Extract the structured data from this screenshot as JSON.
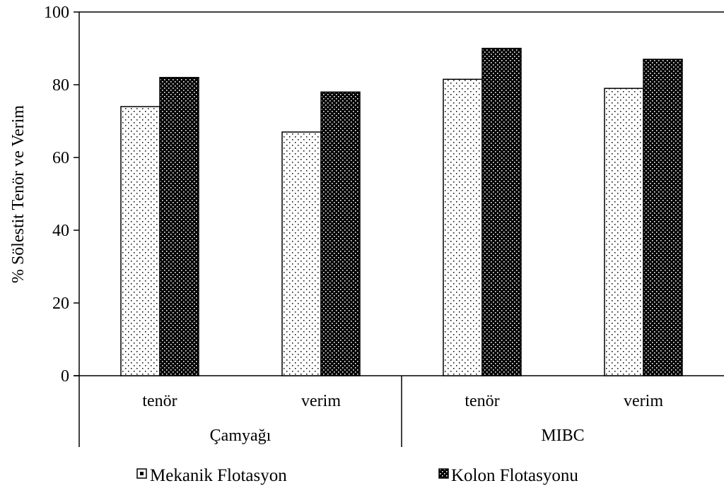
{
  "chart_data": {
    "type": "bar",
    "title": "",
    "ylabel": "% Sölestit Tenör ve Verim",
    "xlabel": "",
    "ylim": [
      0,
      100
    ],
    "yticks": [
      0,
      20,
      40,
      60,
      80,
      100
    ],
    "grid": false,
    "legend_position": "bottom",
    "groups": [
      {
        "label": "Çamyağı",
        "categories": [
          "tenör",
          "verim"
        ]
      },
      {
        "label": "MIBC",
        "categories": [
          "tenör",
          "verim"
        ]
      }
    ],
    "categories": [
      "tenör",
      "verim",
      "tenör",
      "verim"
    ],
    "series": [
      {
        "name": "Mekanik Flotasyon",
        "values": [
          74,
          67,
          81.5,
          79
        ],
        "fill": "#ffffff",
        "dot": "#000000"
      },
      {
        "name": "Kolon Flotasyonu",
        "values": [
          82,
          78,
          90,
          87
        ],
        "fill": "#000000",
        "dot": "#ffffff"
      }
    ]
  }
}
